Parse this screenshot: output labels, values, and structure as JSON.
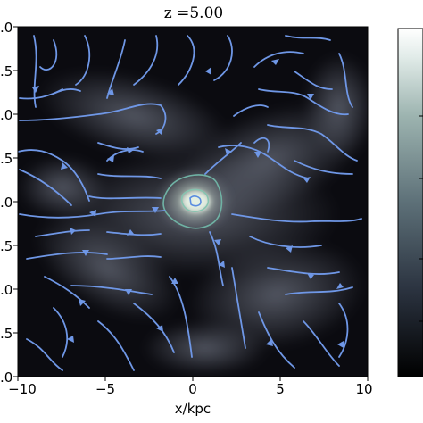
{
  "figure": {
    "title": "z =5.00",
    "xlabel": "x/kpc",
    "x_ticks": [
      "−10",
      "−5",
      "0",
      "5",
      "10"
    ],
    "y_ticks": [
      ".0",
      ".5",
      ".0",
      ".5",
      ".0",
      ".5",
      ".0",
      ".5",
      ".0"
    ],
    "xlim": [
      -10,
      10
    ],
    "colors": {
      "background": "#0b0b10",
      "gas": "#a7aebd",
      "streamlines": "#6f97e6",
      "core": "#dff0d8"
    }
  },
  "colorbar": {
    "visible_tick_marks": 4,
    "colors": [
      "#000000",
      "#2b3340",
      "#5d7078",
      "#9db4b0",
      "#e2ece9",
      "#ffffff"
    ]
  }
}
